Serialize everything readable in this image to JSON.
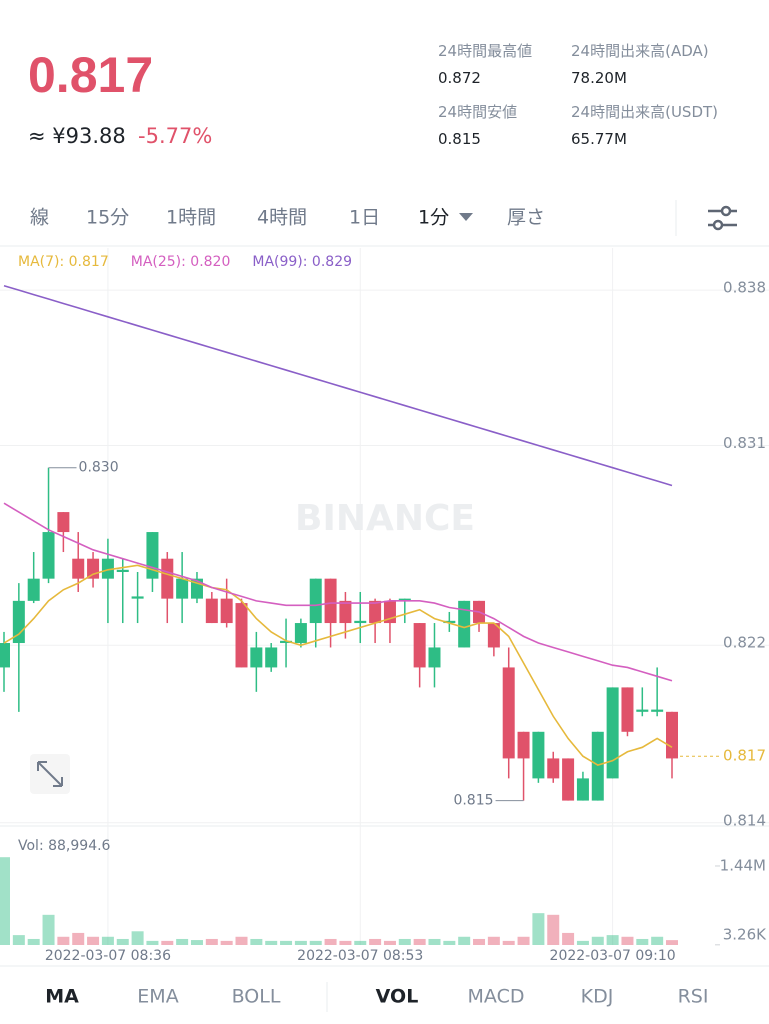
{
  "header": {
    "price": "0.817",
    "cny": "≈ ¥93.88",
    "change": "-5.77%",
    "stats": [
      {
        "label": "24時間最高値",
        "value": "0.872"
      },
      {
        "label": "24時間出来高(ADA)",
        "value": "78.20M"
      },
      {
        "label": "24時間安値",
        "value": "0.815"
      },
      {
        "label": "24時間出来高(USDT)",
        "value": "65.77M"
      }
    ]
  },
  "tabs": [
    "線",
    "15分",
    "1時間",
    "4時間",
    "1日",
    "1分",
    "厚さ"
  ],
  "chart_data": {
    "type": "candlestick",
    "watermark": "BINANCE",
    "up_color": "#2ebd85",
    "down_color": "#e0526a",
    "categories": [
      null,
      null,
      null,
      null,
      null,
      null,
      null,
      "2022-03-07 08:36",
      null,
      null,
      null,
      null,
      null,
      null,
      null,
      null,
      null,
      null,
      null,
      null,
      null,
      null,
      null,
      null,
      "2022-03-07 08:53",
      null,
      null,
      null,
      null,
      null,
      null,
      null,
      null,
      null,
      null,
      null,
      null,
      null,
      null,
      null,
      null,
      "2022-03-07 09:10",
      null,
      null,
      null,
      null
    ],
    "open": [
      0.821,
      0.8221,
      0.824,
      0.825,
      0.828,
      0.8259,
      0.8259,
      0.825,
      0.8253,
      0.8241,
      0.825,
      0.8259,
      0.8241,
      0.8241,
      0.8241,
      0.8241,
      0.8239,
      0.821,
      0.821,
      0.8221,
      0.8221,
      0.823,
      0.825,
      0.824,
      0.823,
      0.824,
      0.824,
      0.824,
      0.823,
      0.821,
      0.823,
      0.8219,
      0.824,
      0.823,
      0.821,
      0.8181,
      0.816,
      0.8169,
      0.8169,
      0.815,
      0.815,
      0.816,
      0.8201,
      0.819,
      0.819,
      0.819
    ],
    "high": [
      0.8226,
      0.8248,
      0.8262,
      0.83,
      0.828,
      0.8271,
      0.8262,
      0.8268,
      0.8259,
      0.8253,
      0.8271,
      0.8262,
      0.8262,
      0.8253,
      0.8244,
      0.825,
      0.8241,
      0.8226,
      0.8221,
      0.8232,
      0.8232,
      0.825,
      0.825,
      0.8244,
      0.8244,
      0.8241,
      0.8241,
      0.8241,
      0.823,
      0.823,
      0.8235,
      0.824,
      0.824,
      0.823,
      0.8219,
      0.8181,
      0.8181,
      0.8172,
      0.8169,
      0.8163,
      0.8181,
      0.8201,
      0.8201,
      0.8201,
      0.821,
      0.819
    ],
    "low": [
      0.8199,
      0.819,
      0.8239,
      0.8248,
      0.8262,
      0.8244,
      0.8246,
      0.823,
      0.823,
      0.823,
      0.8244,
      0.823,
      0.823,
      0.8239,
      0.823,
      0.8228,
      0.821,
      0.8199,
      0.8208,
      0.821,
      0.8219,
      0.8219,
      0.8219,
      0.8223,
      0.8221,
      0.8221,
      0.8221,
      0.823,
      0.8201,
      0.8201,
      0.8226,
      0.8219,
      0.8226,
      0.8215,
      0.816,
      0.815,
      0.8158,
      0.8158,
      0.815,
      0.815,
      0.815,
      0.816,
      0.8179,
      0.8188,
      0.8188,
      0.816
    ],
    "close": [
      0.8221,
      0.824,
      0.825,
      0.8271,
      0.8271,
      0.825,
      0.825,
      0.8259,
      0.8254,
      0.8242,
      0.8271,
      0.8241,
      0.825,
      0.825,
      0.823,
      0.823,
      0.821,
      0.8219,
      0.8219,
      0.8222,
      0.823,
      0.825,
      0.823,
      0.823,
      0.8231,
      0.823,
      0.823,
      0.8241,
      0.821,
      0.8219,
      0.8231,
      0.824,
      0.823,
      0.8219,
      0.8169,
      0.8169,
      0.8181,
      0.816,
      0.815,
      0.816,
      0.8181,
      0.8201,
      0.8181,
      0.8191,
      0.8191,
      0.8169
    ],
    "ma_lines": [
      {
        "name": "MA(7): 0.817",
        "color": "#e6b93c",
        "values": [
          0.8221,
          0.8225,
          0.8232,
          0.824,
          0.8245,
          0.8248,
          0.8252,
          0.8254,
          0.8255,
          0.8256,
          0.8254,
          0.8252,
          0.825,
          0.8248,
          0.8246,
          0.8245,
          0.824,
          0.8232,
          0.8226,
          0.8222,
          0.822,
          0.8222,
          0.8224,
          0.8226,
          0.8228,
          0.823,
          0.8232,
          0.8234,
          0.8236,
          0.8232,
          0.823,
          0.8228,
          0.823,
          0.823,
          0.8224,
          0.8212,
          0.82,
          0.8188,
          0.8178,
          0.817,
          0.8166,
          0.8168,
          0.8172,
          0.8174,
          0.8178,
          0.8174
        ]
      },
      {
        "name": "MA(25): 0.820",
        "color": "#d45fc0",
        "values": [
          0.8284,
          0.828,
          0.8276,
          0.8272,
          0.8269,
          0.8266,
          0.8263,
          0.8261,
          0.8259,
          0.8257,
          0.8255,
          0.8253,
          0.8251,
          0.8249,
          0.8246,
          0.8244,
          0.8242,
          0.824,
          0.8239,
          0.8238,
          0.8238,
          0.8238,
          0.8239,
          0.8239,
          0.8239,
          0.8239,
          0.824,
          0.824,
          0.824,
          0.8239,
          0.8237,
          0.8236,
          0.8235,
          0.8232,
          0.8228,
          0.8224,
          0.8221,
          0.8219,
          0.8217,
          0.8215,
          0.8213,
          0.8211,
          0.821,
          0.8208,
          0.8206,
          0.8204
        ]
      },
      {
        "name": "MA(99): 0.829",
        "color": "#8a5fc8",
        "values": [
          0.8382,
          0.838,
          0.8378,
          0.8376,
          0.8374,
          0.8372,
          0.837,
          0.8368,
          0.8366,
          0.8364,
          0.8362,
          0.836,
          0.8358,
          0.8356,
          0.8354,
          0.8352,
          0.835,
          0.8348,
          0.8346,
          0.8344,
          0.8342,
          0.834,
          0.8338,
          0.8336,
          0.8334,
          0.8332,
          0.833,
          0.8328,
          0.8326,
          0.8324,
          0.8322,
          0.832,
          0.8318,
          0.8316,
          0.8314,
          0.8312,
          0.831,
          0.8308,
          0.8306,
          0.8304,
          0.8302,
          0.83,
          0.8298,
          0.8296,
          0.8294,
          0.8292
        ]
      }
    ],
    "ylim": [
      0.8139,
      0.8399
    ],
    "yticks": [
      0.838,
      0.831,
      0.822,
      0.814
    ],
    "high_label": {
      "value": 0.83,
      "label": "0.830"
    },
    "low_label": {
      "value": 0.815,
      "label": "0.815"
    },
    "last_price": {
      "value": 0.817,
      "label": "0.817"
    },
    "volume": {
      "label": "Vol: 88,994.6",
      "ylim": [
        0,
        1640000
      ],
      "yticks": [
        {
          "value": 1440000,
          "label": "1.44M"
        },
        {
          "value": 3260,
          "label": "3.26K"
        }
      ],
      "values": [
        1600000,
        180000,
        110000,
        550000,
        150000,
        220000,
        150000,
        150000,
        110000,
        250000,
        75000,
        75000,
        110000,
        90000,
        110000,
        75000,
        150000,
        110000,
        75000,
        75000,
        75000,
        75000,
        110000,
        75000,
        75000,
        110000,
        75000,
        110000,
        110000,
        110000,
        75000,
        150000,
        110000,
        150000,
        75000,
        150000,
        580000,
        550000,
        220000,
        75000,
        150000,
        180000,
        150000,
        110000,
        150000,
        88994.6
      ]
    }
  },
  "indicator_tabs": [
    "MA",
    "EMA",
    "BOLL",
    "VOL",
    "MACD",
    "KDJ",
    "RSI"
  ]
}
